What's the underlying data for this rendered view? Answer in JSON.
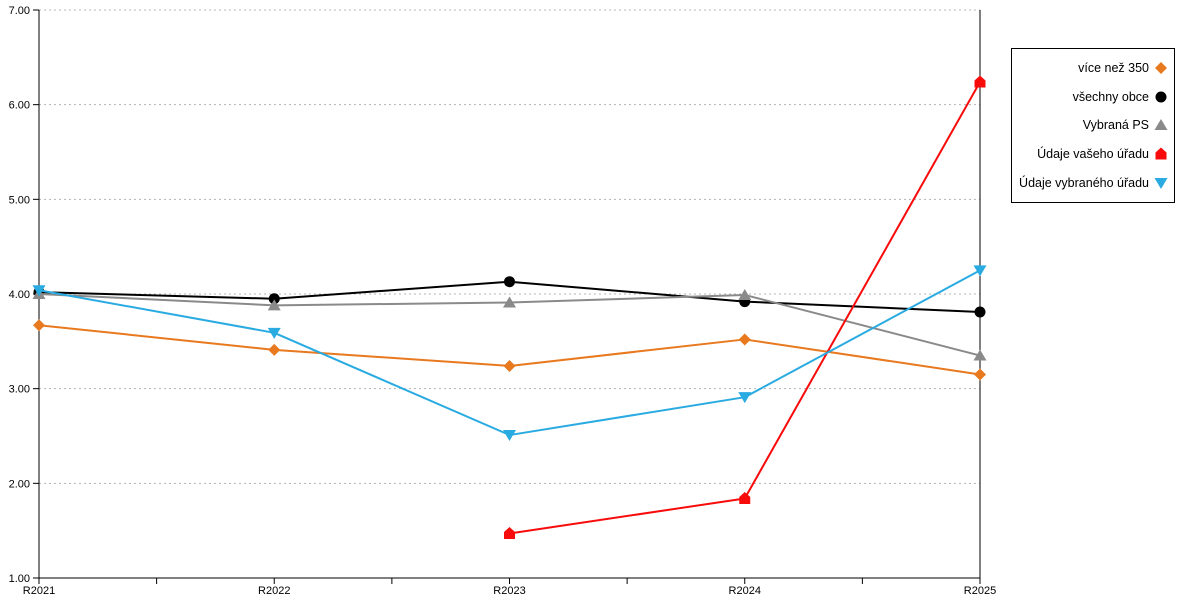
{
  "chart_data": {
    "type": "line",
    "title": "",
    "xlabel": "",
    "ylabel": "",
    "categories": [
      "R2021",
      "R2022",
      "R2023",
      "R2024",
      "R2025"
    ],
    "series": [
      {
        "name": "více než 350",
        "marker": "diamond",
        "color": "#E8791E",
        "values": [
          3.67,
          3.41,
          3.24,
          3.52,
          3.15
        ]
      },
      {
        "name": "všechny obce",
        "marker": "circle",
        "color": "#000000",
        "values": [
          4.02,
          3.95,
          4.13,
          3.92,
          3.81
        ]
      },
      {
        "name": "Vybraná PS",
        "marker": "triangle-up",
        "color": "#8A8A8A",
        "values": [
          4.0,
          3.88,
          3.91,
          3.99,
          3.35
        ]
      },
      {
        "name": "Údaje vašeho úřadu",
        "marker": "house",
        "color": "#F80B0B",
        "values": [
          null,
          null,
          1.47,
          1.84,
          6.24
        ]
      },
      {
        "name": "Údaje vybraného úřadu",
        "marker": "triangle-down",
        "color": "#29ABE2",
        "values": [
          4.04,
          3.59,
          2.51,
          2.91,
          4.25
        ]
      }
    ],
    "ylim": [
      1,
      7
    ],
    "y_ticks": [
      "1.00",
      "2.00",
      "3.00",
      "4.00",
      "5.00",
      "6.00",
      "7.00"
    ],
    "grid": true,
    "gridline_color": "#B3B3B3",
    "axis_color": "#000000",
    "legend_position": "right"
  }
}
